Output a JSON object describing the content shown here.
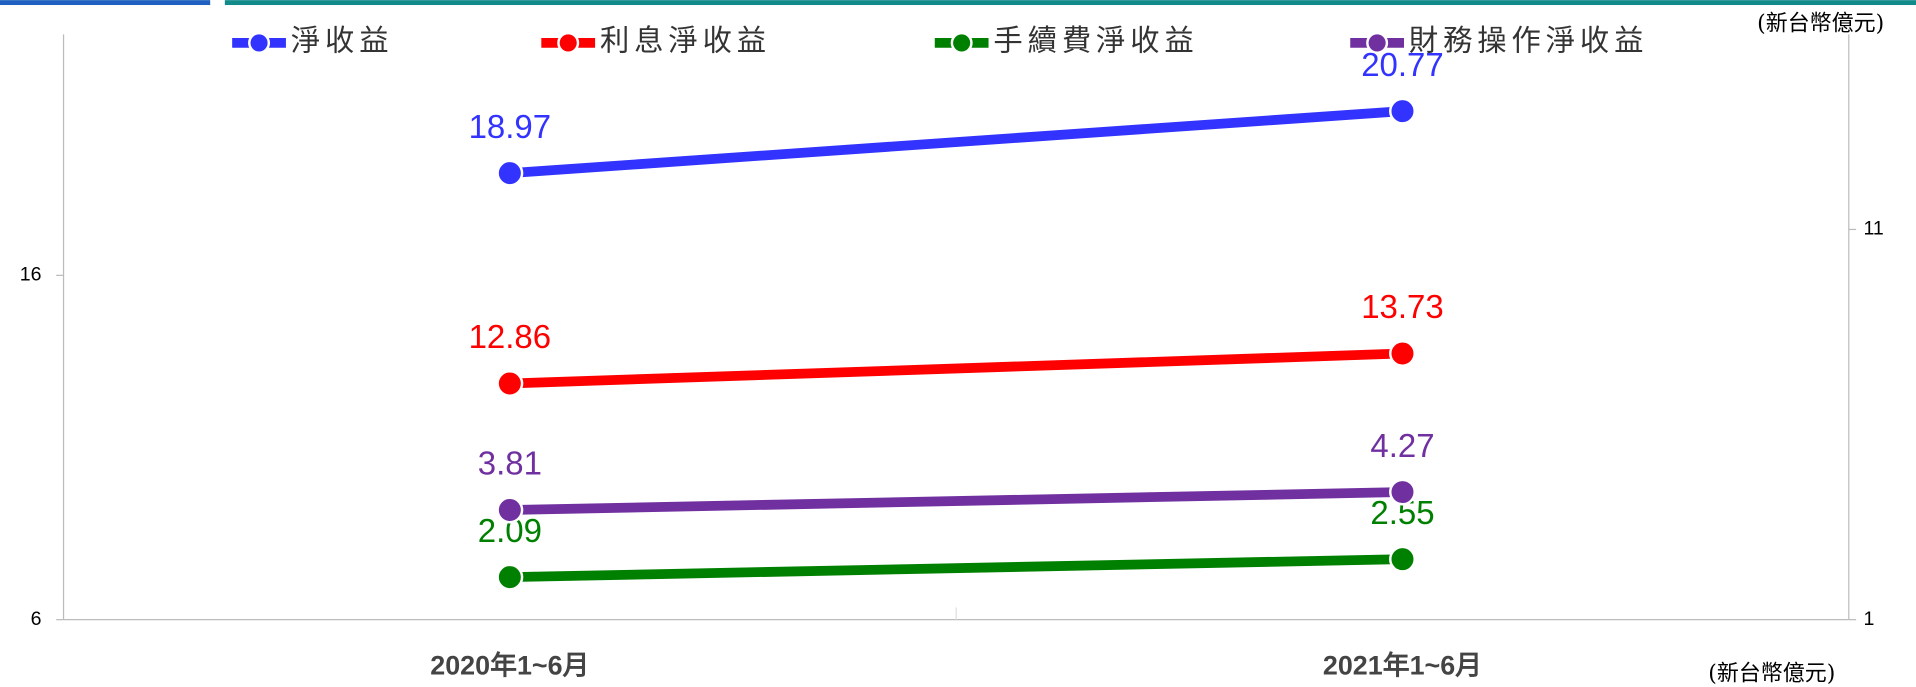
{
  "chart_data": {
    "type": "line",
    "categories": [
      "2020年1~6月",
      "2021年1~6月"
    ],
    "series": [
      {
        "name": "淨收益",
        "color": "#3333ff",
        "values": [
          18.97,
          20.77
        ]
      },
      {
        "name": "利息淨收益",
        "color": "#ff0000",
        "values": [
          12.86,
          13.73
        ]
      },
      {
        "name": "手續費淨收益",
        "color": "#008000",
        "values": [
          2.09,
          2.55
        ],
        "axis": "y2"
      },
      {
        "name": "財務操作淨收益",
        "color": "#7030a0",
        "values": [
          3.81,
          4.27
        ],
        "axis": "y2"
      }
    ],
    "ylim": [
      6,
      23
    ],
    "yticks": [
      6,
      16
    ],
    "y2lim": [
      1,
      16
    ],
    "y2ticks": [
      1,
      11
    ],
    "y2_label": "(新台幣億元)",
    "y_label": "(新台幣億元)",
    "legend": "top"
  }
}
